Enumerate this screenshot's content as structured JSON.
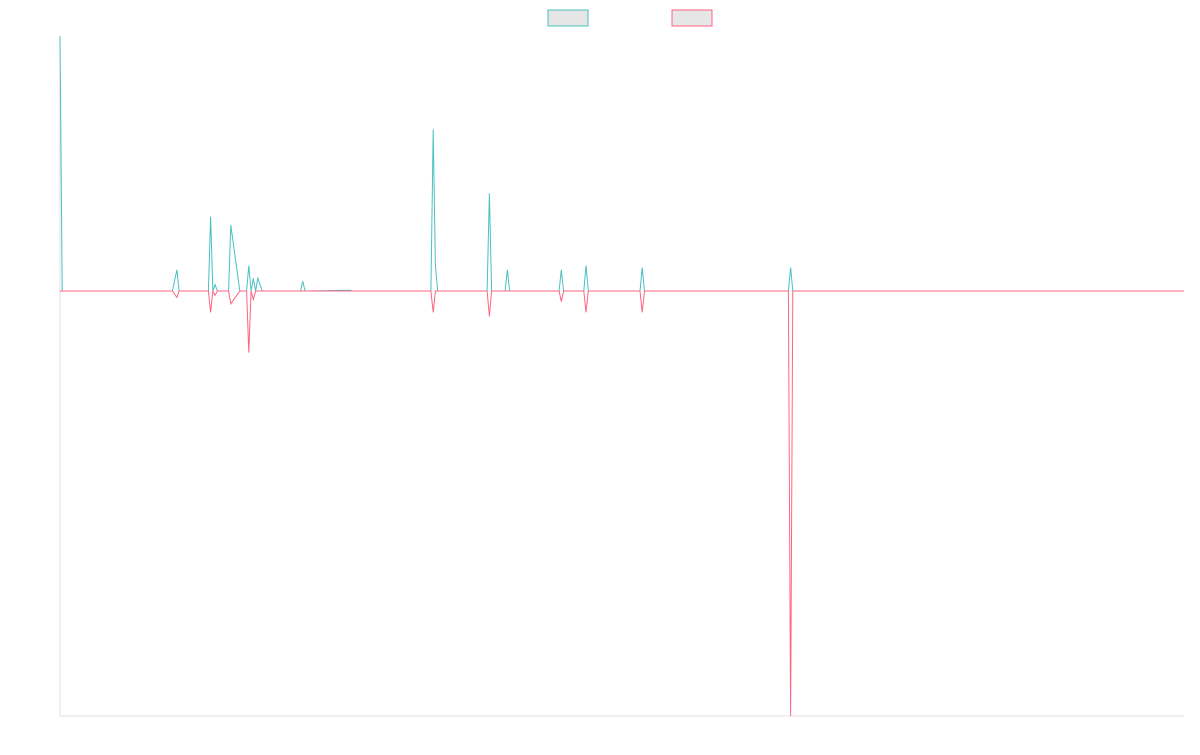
{
  "chart_data": {
    "type": "line",
    "title": "",
    "xlabel": "",
    "ylabel": "",
    "grid": false,
    "legend_position": "top-center",
    "xlim": [
      0,
      1000
    ],
    "ylim": [
      -100,
      60
    ],
    "x": [
      0,
      2,
      4,
      100,
      104,
      106,
      110,
      120,
      128,
      132,
      134,
      136,
      138,
      140,
      146,
      148,
      150,
      152,
      160,
      166,
      168,
      170,
      172,
      174,
      176,
      180,
      214,
      216,
      218,
      258,
      260,
      330,
      332,
      334,
      336,
      380,
      382,
      384,
      396,
      398,
      400,
      404,
      444,
      446,
      448,
      466,
      468,
      470,
      516,
      518,
      520,
      648,
      650,
      652,
      1000
    ],
    "series": [
      {
        "color": "#4bc0c0",
        "values": [
          60,
          0,
          0,
          0,
          5,
          0,
          0,
          0,
          0,
          0,
          17.5,
          0,
          1.5,
          0,
          0,
          0,
          0,
          15.5,
          0,
          0,
          6,
          0,
          3,
          0,
          3,
          0,
          0,
          2.3,
          0,
          0.2,
          0,
          0,
          38,
          6,
          0,
          0,
          23,
          0,
          0,
          5,
          0,
          0,
          0,
          5,
          0,
          0,
          6,
          0,
          0,
          5.5,
          0,
          0,
          5.5,
          0,
          0
        ]
      },
      {
        "color": "#ff6384",
        "values": [
          0,
          0,
          0,
          0,
          -1.5,
          0,
          0,
          0,
          0,
          0,
          -5,
          0,
          -1,
          0,
          0,
          0,
          0,
          -3,
          0,
          0,
          -14.5,
          0,
          -2,
          0,
          0,
          0,
          0,
          0,
          0,
          0,
          0,
          0,
          -5,
          0,
          0,
          0,
          -6,
          0,
          0,
          0,
          0,
          0,
          0,
          -2.5,
          0,
          0,
          -5,
          0,
          0,
          -5,
          0,
          0,
          -100,
          0,
          0
        ]
      }
    ]
  }
}
